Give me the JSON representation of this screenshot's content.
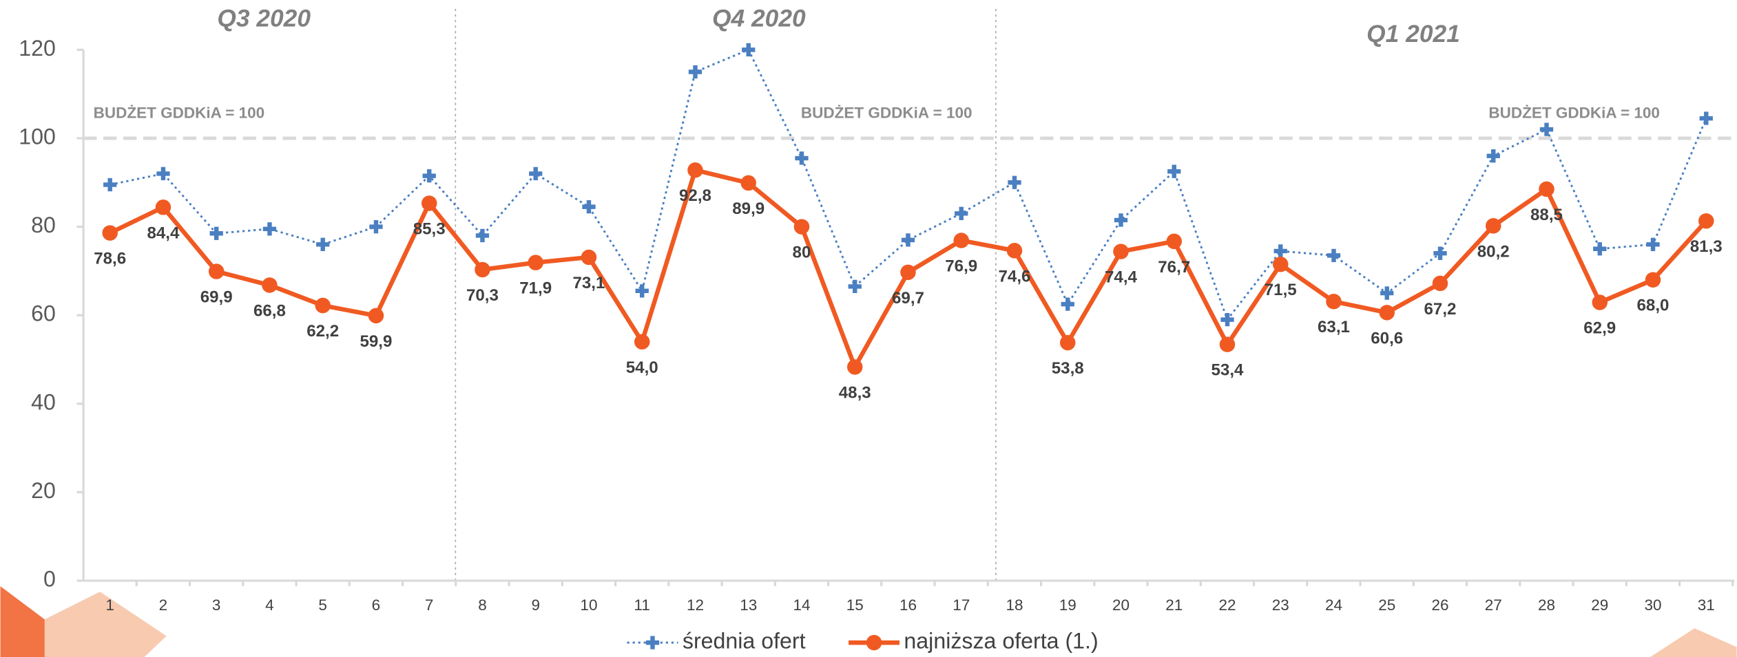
{
  "chart_data": {
    "type": "line",
    "quarters": [
      "Q3 2020",
      "Q4 2020",
      "Q1 2021"
    ],
    "reference_line": {
      "value": 100,
      "label": "BUDŻET GDDKiA = 100"
    },
    "categories": [
      "1",
      "2",
      "3",
      "4",
      "5",
      "6",
      "7",
      "8",
      "9",
      "10",
      "11",
      "12",
      "13",
      "14",
      "15",
      "16",
      "17",
      "18",
      "19",
      "20",
      "21",
      "22",
      "23",
      "24",
      "25",
      "26",
      "27",
      "28",
      "29",
      "30",
      "31"
    ],
    "series": [
      {
        "name": "średnia ofert",
        "color": "#4a7fc1",
        "values": [
          89.5,
          92,
          78.5,
          79.5,
          76,
          80,
          91.5,
          78,
          92,
          84.5,
          65.5,
          115,
          120,
          95.5,
          66.5,
          77,
          83,
          90,
          62.5,
          81.5,
          92.5,
          59,
          74.5,
          73.5,
          65,
          74,
          96,
          102,
          75,
          76,
          104.5
        ]
      },
      {
        "name": "najniższa oferta (1.)",
        "color": "#f05a22",
        "values": [
          78.6,
          84.4,
          69.9,
          66.8,
          62.2,
          59.9,
          85.3,
          70.3,
          71.9,
          73.1,
          54.0,
          92.8,
          89.9,
          80,
          48.3,
          69.7,
          76.9,
          74.6,
          53.8,
          74.4,
          76.7,
          53.4,
          71.5,
          63.1,
          60.6,
          67.2,
          80.2,
          88.5,
          62.9,
          68.0,
          81.3
        ],
        "value_labels": [
          "78,6",
          "84,4",
          "69,9",
          "66,8",
          "62,2",
          "59,9",
          "85,3",
          "70,3",
          "71,9",
          "73,1",
          "54,0",
          "92,8",
          "89,9",
          "80",
          "48,3",
          "69,7",
          "76,9",
          "74,6",
          "53,8",
          "74,4",
          "76,7",
          "53,4",
          "71,5",
          "63,1",
          "60,6",
          "67,2",
          "80,2",
          "88,5",
          "62,9",
          "68,0",
          "81,3"
        ]
      }
    ],
    "ylim": [
      0,
      120
    ],
    "yticks": [
      0,
      20,
      40,
      60,
      80,
      100,
      120
    ],
    "grid": false
  }
}
